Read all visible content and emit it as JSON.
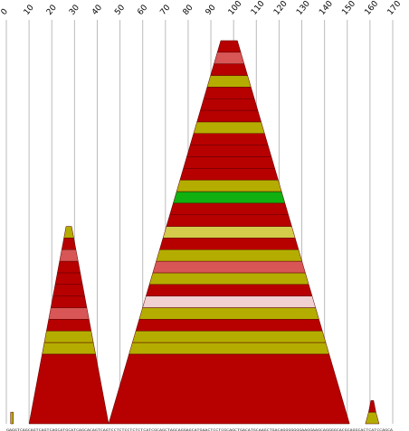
{
  "chart_data": {
    "type": "area",
    "title": "",
    "xlabel": "",
    "ylabel": "",
    "x_ticks": [
      "0",
      "10",
      "20",
      "30",
      "40",
      "50",
      "60",
      "70",
      "80",
      "90",
      "100",
      "110",
      "120",
      "130",
      "140",
      "150",
      "160",
      "170"
    ],
    "xlim": [
      0,
      170
    ],
    "grid": true,
    "legend": "none",
    "colors": {
      "dark_red": "#b70000",
      "olive": "#b4ad00",
      "light_red": "#d85656",
      "yellow": "#d4cb4a",
      "green": "#10b010",
      "pink": "#f0d0d0",
      "outline": "#5a0000",
      "grid": "#bbbbbb"
    },
    "peaks": [
      {
        "start": 2,
        "end": 3,
        "max_level": 1,
        "bands": [
          {
            "from": 0,
            "to": 1,
            "color": "olive"
          }
        ]
      },
      {
        "start": 10,
        "end": 45,
        "max_level": 17,
        "bands": [
          {
            "from": 0,
            "to": 6,
            "color": "dark_red"
          },
          {
            "from": 6,
            "to": 7,
            "color": "olive"
          },
          {
            "from": 7,
            "to": 8,
            "color": "olive"
          },
          {
            "from": 8,
            "to": 9,
            "color": "dark_red"
          },
          {
            "from": 9,
            "to": 10,
            "color": "light_red"
          },
          {
            "from": 10,
            "to": 11,
            "color": "dark_red"
          },
          {
            "from": 11,
            "to": 12,
            "color": "dark_red"
          },
          {
            "from": 12,
            "to": 13,
            "color": "dark_red"
          },
          {
            "from": 13,
            "to": 14,
            "color": "dark_red"
          },
          {
            "from": 14,
            "to": 15,
            "color": "light_red"
          },
          {
            "from": 15,
            "to": 16,
            "color": "dark_red"
          },
          {
            "from": 16,
            "to": 17,
            "color": "olive"
          }
        ]
      },
      {
        "start": 45,
        "end": 151,
        "max_level": 33,
        "bands": [
          {
            "from": 0,
            "to": 6,
            "color": "dark_red"
          },
          {
            "from": 6,
            "to": 7,
            "color": "olive"
          },
          {
            "from": 7,
            "to": 8,
            "color": "olive"
          },
          {
            "from": 8,
            "to": 9,
            "color": "dark_red"
          },
          {
            "from": 9,
            "to": 10,
            "color": "olive"
          },
          {
            "from": 10,
            "to": 11,
            "color": "pink"
          },
          {
            "from": 11,
            "to": 12,
            "color": "dark_red"
          },
          {
            "from": 12,
            "to": 13,
            "color": "olive"
          },
          {
            "from": 13,
            "to": 14,
            "color": "light_red"
          },
          {
            "from": 14,
            "to": 15,
            "color": "olive"
          },
          {
            "from": 15,
            "to": 16,
            "color": "dark_red"
          },
          {
            "from": 16,
            "to": 17,
            "color": "yellow"
          },
          {
            "from": 17,
            "to": 18,
            "color": "dark_red"
          },
          {
            "from": 18,
            "to": 19,
            "color": "dark_red"
          },
          {
            "from": 19,
            "to": 20,
            "color": "green"
          },
          {
            "from": 20,
            "to": 21,
            "color": "olive"
          },
          {
            "from": 21,
            "to": 22,
            "color": "dark_red"
          },
          {
            "from": 22,
            "to": 23,
            "color": "dark_red"
          },
          {
            "from": 23,
            "to": 24,
            "color": "dark_red"
          },
          {
            "from": 24,
            "to": 25,
            "color": "dark_red"
          },
          {
            "from": 25,
            "to": 26,
            "color": "olive"
          },
          {
            "from": 26,
            "to": 27,
            "color": "dark_red"
          },
          {
            "from": 27,
            "to": 28,
            "color": "dark_red"
          },
          {
            "from": 28,
            "to": 29,
            "color": "dark_red"
          },
          {
            "from": 29,
            "to": 30,
            "color": "olive"
          },
          {
            "from": 30,
            "to": 31,
            "color": "dark_red"
          },
          {
            "from": 31,
            "to": 32,
            "color": "light_red"
          },
          {
            "from": 32,
            "to": 33,
            "color": "dark_red"
          }
        ]
      },
      {
        "start": 158,
        "end": 164,
        "max_level": 2,
        "bands": [
          {
            "from": 0,
            "to": 1,
            "color": "olive"
          },
          {
            "from": 1,
            "to": 2,
            "color": "dark_red"
          }
        ]
      }
    ],
    "sequence": "GAGGTCAGCAGTCAGTCAGCATGCATCAGCACAGTCAGTCCTCTCCTCTCTCATCGCAGCTAGCAGGAGCATGAACTCCTCGCAGCTGACATGCAAGCTGACAGGGGGGGAAGGAAGCAGGGGCACGCAGGCACTCATCCAGCA"
  }
}
